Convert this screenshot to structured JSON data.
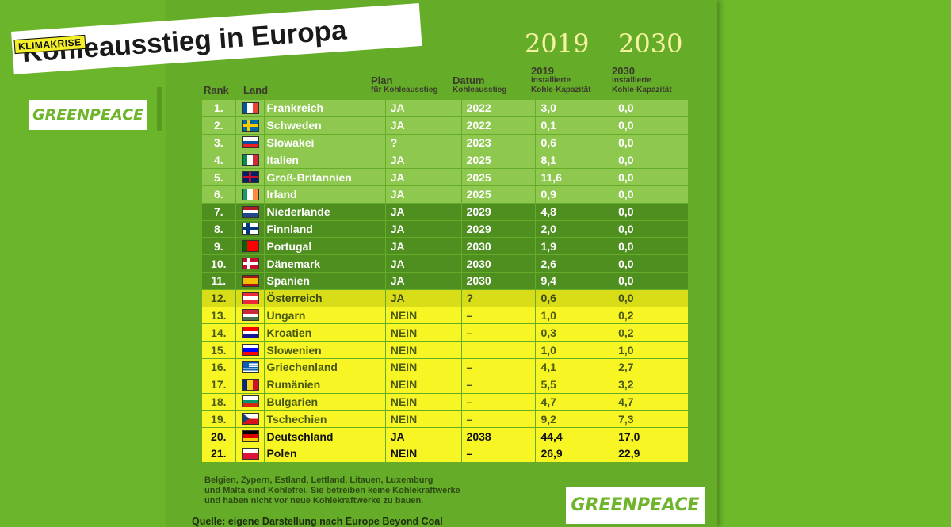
{
  "header": {
    "kicker": "KLIMAKRISE",
    "title": "Kohleausstieg in Europa"
  },
  "logos": {
    "left": "GREENPEACE",
    "right": "GREENPEACE"
  },
  "years": {
    "y2019": "2019",
    "y2030": "2030"
  },
  "columns": {
    "rank": "Rank",
    "land": "Land",
    "plan": "Plan",
    "plan_sub": "für Kohleausstieg",
    "datum": "Datum",
    "datum_sub": "Kohleausstieg",
    "y19": "2019",
    "y19_sub1": "installierte",
    "y19_sub2": "Kohle-Kapazität",
    "y30": "2030",
    "y30_sub1": "installierte",
    "y30_sub2": "Kohle-Kapazität"
  },
  "rows": [
    {
      "rank": "1.",
      "land": "Frankreich",
      "plan": "JA",
      "datum": "2022",
      "y19": "3,0",
      "y30": "0,0",
      "flag": "fr"
    },
    {
      "rank": "2.",
      "land": "Schweden",
      "plan": "JA",
      "datum": "2022",
      "y19": "0,1",
      "y30": "0,0",
      "flag": "se"
    },
    {
      "rank": "3.",
      "land": "Slowakei",
      "plan": "?",
      "datum": "2023",
      "y19": "0,6",
      "y30": "0,0",
      "flag": "sk"
    },
    {
      "rank": "4.",
      "land": "Italien",
      "plan": "JA",
      "datum": "2025",
      "y19": "8,1",
      "y30": "0,0",
      "flag": "it"
    },
    {
      "rank": "5.",
      "land": "Groß-Britannien",
      "plan": "JA",
      "datum": "2025",
      "y19": "11,6",
      "y30": "0,0",
      "flag": "gb"
    },
    {
      "rank": "6.",
      "land": "Irland",
      "plan": "JA",
      "datum": "2025",
      "y19": "0,9",
      "y30": "0,0",
      "flag": "ie"
    },
    {
      "rank": "7.",
      "land": "Niederlande",
      "plan": "JA",
      "datum": "2029",
      "y19": "4,8",
      "y30": "0,0",
      "flag": "nl"
    },
    {
      "rank": "8.",
      "land": "Finnland",
      "plan": "JA",
      "datum": "2029",
      "y19": "2,0",
      "y30": "0,0",
      "flag": "fi"
    },
    {
      "rank": "9.",
      "land": "Portugal",
      "plan": "JA",
      "datum": "2030",
      "y19": "1,9",
      "y30": "0,0",
      "flag": "pt"
    },
    {
      "rank": "10.",
      "land": "Dänemark",
      "plan": "JA",
      "datum": "2030",
      "y19": "2,6",
      "y30": "0,0",
      "flag": "dk"
    },
    {
      "rank": "11.",
      "land": "Spanien",
      "plan": "JA",
      "datum": "2030",
      "y19": "9,4",
      "y30": "0,0",
      "flag": "es"
    },
    {
      "rank": "12.",
      "land": "Österreich",
      "plan": "JA",
      "datum": "?",
      "y19": "0,6",
      "y30": "0,0",
      "flag": "at"
    },
    {
      "rank": "13.",
      "land": "Ungarn",
      "plan": "NEIN",
      "datum": "–",
      "y19": "1,0",
      "y30": "0,2",
      "flag": "hu"
    },
    {
      "rank": "14.",
      "land": "Kroatien",
      "plan": "NEIN",
      "datum": "–",
      "y19": "0,3",
      "y30": "0,2",
      "flag": "hr"
    },
    {
      "rank": "15.",
      "land": "Slowenien",
      "plan": "NEIN",
      "datum": "",
      "y19": "1,0",
      "y30": "1,0",
      "flag": "si"
    },
    {
      "rank": "16.",
      "land": "Griechenland",
      "plan": "NEIN",
      "datum": "–",
      "y19": "4,1",
      "y30": "2,7",
      "flag": "gr"
    },
    {
      "rank": "17.",
      "land": "Rumänien",
      "plan": "NEIN",
      "datum": "–",
      "y19": "5,5",
      "y30": "3,2",
      "flag": "ro"
    },
    {
      "rank": "18.",
      "land": "Bulgarien",
      "plan": "NEIN",
      "datum": "–",
      "y19": "4,7",
      "y30": "4,7",
      "flag": "bg"
    },
    {
      "rank": "19.",
      "land": "Tschechien",
      "plan": "NEIN",
      "datum": "–",
      "y19": "9,2",
      "y30": "7,3",
      "flag": "cz"
    },
    {
      "rank": "20.",
      "land": "Deutschland",
      "plan": "JA",
      "datum": "2038",
      "y19": "44,4",
      "y30": "17,0",
      "flag": "de"
    },
    {
      "rank": "21.",
      "land": "Polen",
      "plan": "NEIN",
      "datum": "–",
      "y19": "26,9",
      "y30": "22,9",
      "flag": "pl"
    }
  ],
  "footnote": {
    "line1": "Belgien, Zypern, Estland, Lettland, Litauen, Luxemburg",
    "line2": "und Malta sind Kohlefrei. Sie betreiben keine Kohlekraftwerke",
    "line3": "und haben nicht vor neue Kohlekraftwerke zu bauen."
  },
  "source": "Quelle: eigene Darstellung nach Europe Beyond Coal",
  "colors": {
    "background": "#6cb52a",
    "row_light_green": "#8ec84f",
    "row_dark_green": "#4e8f1f",
    "row_yellow": "#f7f524",
    "kicker_yellow": "#f3ef2a"
  }
}
